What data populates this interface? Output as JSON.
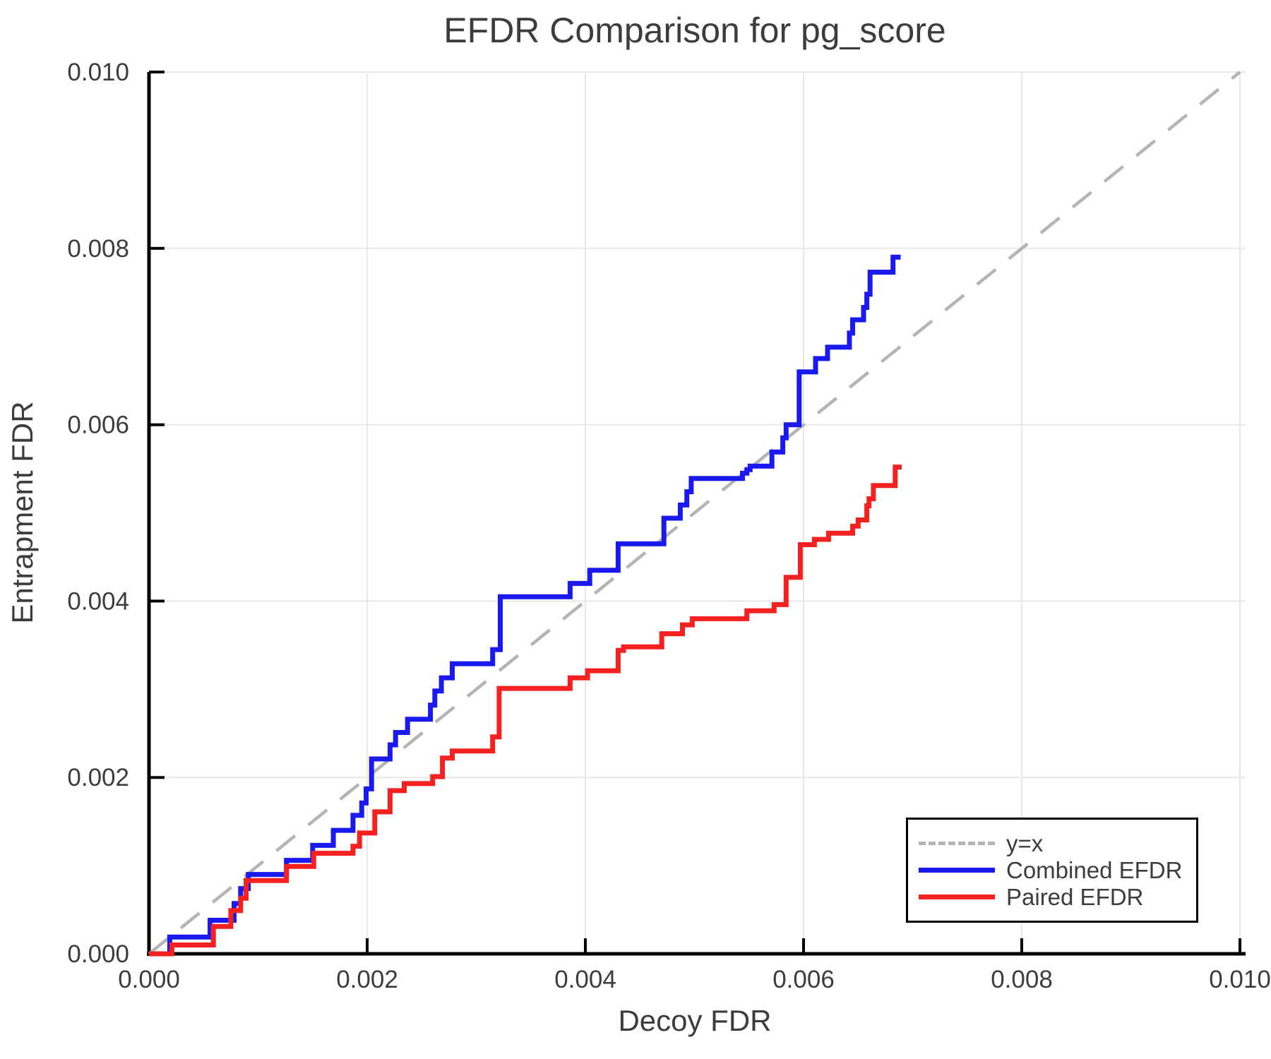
{
  "title": "EFDR Comparison for pg_score",
  "axes": {
    "xlabel": "Decoy FDR",
    "ylabel": "Entrapment FDR"
  },
  "colors": {
    "background": "#ffffff",
    "text": "#3c3c3c",
    "axis": "#000000",
    "grid": "#e8e8e8",
    "reference": "#b4b4b4",
    "combined": "#1a1af0",
    "paired": "#f52020"
  },
  "legend": {
    "items": [
      {
        "label": "y=x",
        "color": "#b4b4b4",
        "dashed": true
      },
      {
        "label": "Combined EFDR",
        "color": "#1a1af0",
        "dashed": false
      },
      {
        "label": "Paired EFDR",
        "color": "#f52020",
        "dashed": false
      }
    ]
  },
  "chart_data": {
    "type": "line",
    "title": "EFDR Comparison for pg_score",
    "xlabel": "Decoy FDR",
    "ylabel": "Entrapment FDR",
    "xlim": [
      0.0,
      0.01
    ],
    "ylim": [
      0.0,
      0.01
    ],
    "grid": true,
    "legend_position": "lower right",
    "x_tick_values": [
      0.0,
      0.002,
      0.004,
      0.006,
      0.008,
      0.01
    ],
    "x_tick_labels": [
      "0.000",
      "0.002",
      "0.004",
      "0.006",
      "0.008",
      "0.010"
    ],
    "y_tick_values": [
      0.0,
      0.002,
      0.004,
      0.006,
      0.008,
      0.01
    ],
    "y_tick_labels": [
      "0.000",
      "0.002",
      "0.004",
      "0.006",
      "0.008",
      "0.010"
    ],
    "reference_line": {
      "label": "y=x",
      "from": [
        0.0,
        0.0
      ],
      "to": [
        0.01,
        0.01
      ],
      "style": "dashed",
      "color": "#b4b4b4"
    },
    "series": [
      {
        "name": "Combined EFDR",
        "color": "#1a1af0",
        "line_style": "step-after",
        "points": [
          [
            0.0,
            0.0
          ],
          [
            0.00019,
            0.00019
          ],
          [
            0.00056,
            0.00038
          ],
          [
            0.00078,
            0.00057
          ],
          [
            0.00084,
            0.00074
          ],
          [
            0.00091,
            0.0009
          ],
          [
            0.00126,
            0.00106
          ],
          [
            0.0015,
            0.00123
          ],
          [
            0.00169,
            0.0014
          ],
          [
            0.00187,
            0.00157
          ],
          [
            0.00195,
            0.00171
          ],
          [
            0.00199,
            0.00187
          ],
          [
            0.00204,
            0.00221
          ],
          [
            0.00221,
            0.00237
          ],
          [
            0.00226,
            0.00251
          ],
          [
            0.00237,
            0.00266
          ],
          [
            0.00258,
            0.00282
          ],
          [
            0.00262,
            0.00298
          ],
          [
            0.00268,
            0.00313
          ],
          [
            0.00278,
            0.00329
          ],
          [
            0.00315,
            0.00345
          ],
          [
            0.00322,
            0.00405
          ],
          [
            0.00386,
            0.0042
          ],
          [
            0.00404,
            0.00435
          ],
          [
            0.0043,
            0.00465
          ],
          [
            0.00472,
            0.00494
          ],
          [
            0.00487,
            0.00509
          ],
          [
            0.00493,
            0.00524
          ],
          [
            0.00497,
            0.00539
          ],
          [
            0.00544,
            0.00545
          ],
          [
            0.00548,
            0.00549
          ],
          [
            0.00551,
            0.00553
          ],
          [
            0.00571,
            0.00569
          ],
          [
            0.00581,
            0.00585
          ],
          [
            0.00584,
            0.006
          ],
          [
            0.00596,
            0.0066
          ],
          [
            0.00611,
            0.00675
          ],
          [
            0.00622,
            0.00688
          ],
          [
            0.00642,
            0.00704
          ],
          [
            0.00645,
            0.00719
          ],
          [
            0.00655,
            0.00733
          ],
          [
            0.00658,
            0.00748
          ],
          [
            0.00661,
            0.00773
          ],
          [
            0.00682,
            0.0079
          ],
          [
            0.00689,
            0.0079
          ]
        ]
      },
      {
        "name": "Paired EFDR",
        "color": "#f52020",
        "line_style": "step-after",
        "points": [
          [
            0.0,
            0.0
          ],
          [
            0.00021,
            0.0001
          ],
          [
            0.00059,
            0.00031
          ],
          [
            0.00075,
            0.00049
          ],
          [
            0.00084,
            0.00063
          ],
          [
            0.00089,
            0.00083
          ],
          [
            0.00126,
            0.00099
          ],
          [
            0.00151,
            0.00114
          ],
          [
            0.00187,
            0.00122
          ],
          [
            0.00193,
            0.00137
          ],
          [
            0.00207,
            0.00161
          ],
          [
            0.00221,
            0.00185
          ],
          [
            0.00234,
            0.00193
          ],
          [
            0.0026,
            0.00201
          ],
          [
            0.00269,
            0.00222
          ],
          [
            0.00278,
            0.0023
          ],
          [
            0.00315,
            0.00246
          ],
          [
            0.00321,
            0.00301
          ],
          [
            0.00386,
            0.00313
          ],
          [
            0.00402,
            0.00321
          ],
          [
            0.0043,
            0.00344
          ],
          [
            0.00435,
            0.00348
          ],
          [
            0.0047,
            0.00363
          ],
          [
            0.00489,
            0.00373
          ],
          [
            0.00498,
            0.0038
          ],
          [
            0.00548,
            0.00389
          ],
          [
            0.00573,
            0.00396
          ],
          [
            0.00584,
            0.00427
          ],
          [
            0.00597,
            0.00464
          ],
          [
            0.0061,
            0.0047
          ],
          [
            0.00623,
            0.00477
          ],
          [
            0.00645,
            0.00485
          ],
          [
            0.0065,
            0.00492
          ],
          [
            0.00658,
            0.00508
          ],
          [
            0.0066,
            0.00516
          ],
          [
            0.00664,
            0.00531
          ],
          [
            0.00684,
            0.00552
          ],
          [
            0.0069,
            0.00552
          ]
        ]
      }
    ]
  }
}
